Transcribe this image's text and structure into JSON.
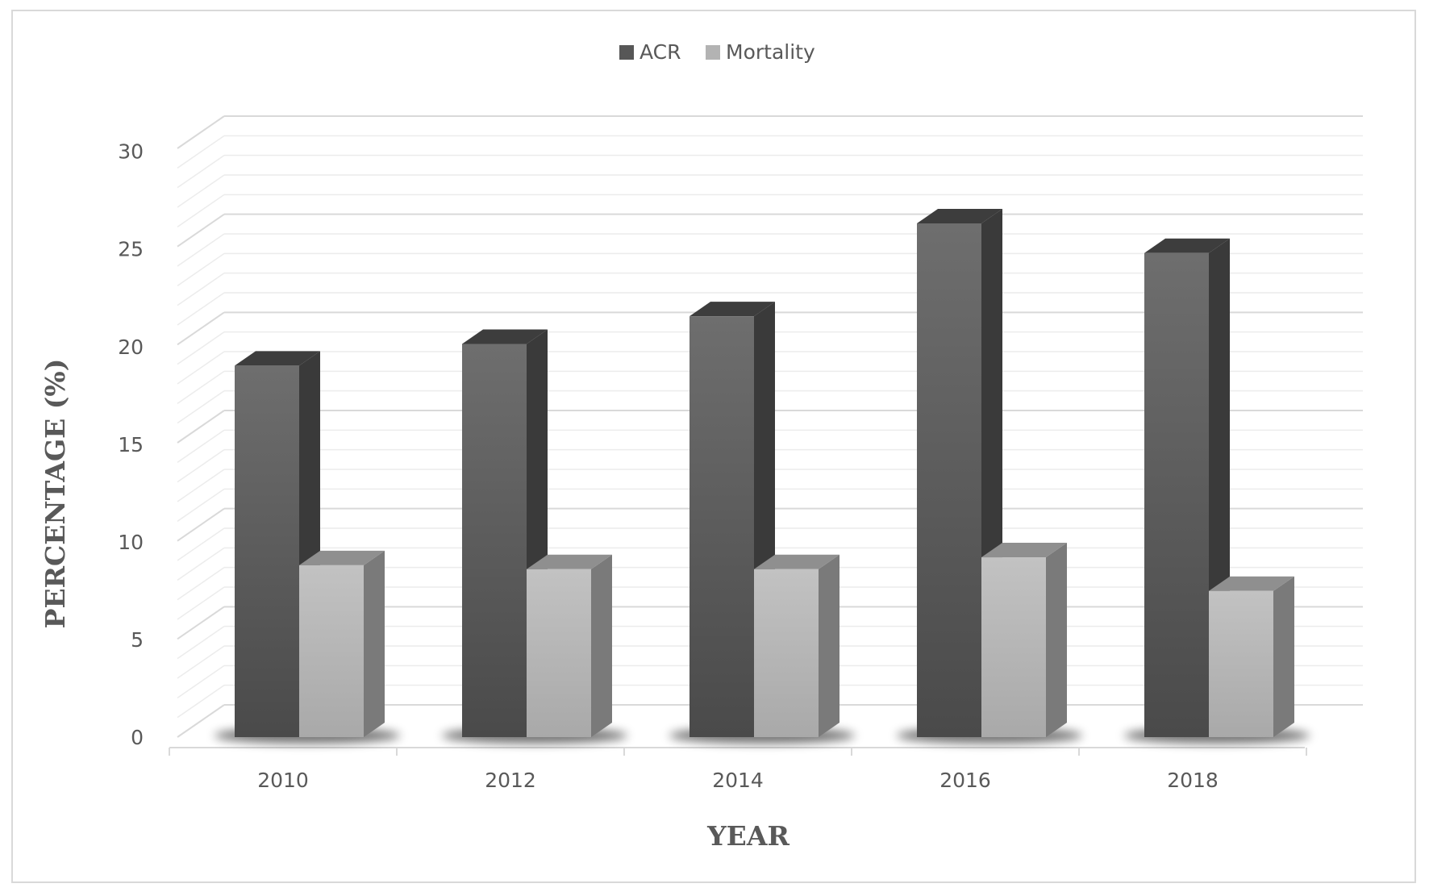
{
  "chart_data": {
    "type": "bar",
    "style": "3d-clustered-column",
    "categories": [
      "2010",
      "2012",
      "2014",
      "2016",
      "2018"
    ],
    "series": [
      {
        "name": "ACR",
        "values": [
          18.8,
          19.9,
          21.3,
          26.0,
          24.5
        ],
        "color": "#575757"
      },
      {
        "name": "Mortality",
        "values": [
          8.7,
          8.5,
          8.5,
          9.1,
          7.4
        ],
        "color": "#b3b3b3"
      }
    ],
    "title": "",
    "xlabel": "YEAR",
    "ylabel": "PERCENTAGE (%)",
    "ylim": [
      0,
      30
    ],
    "yticks": [
      "0",
      "5",
      "10",
      "15",
      "20",
      "25",
      "30"
    ],
    "grid": true,
    "legend": "top-center"
  }
}
